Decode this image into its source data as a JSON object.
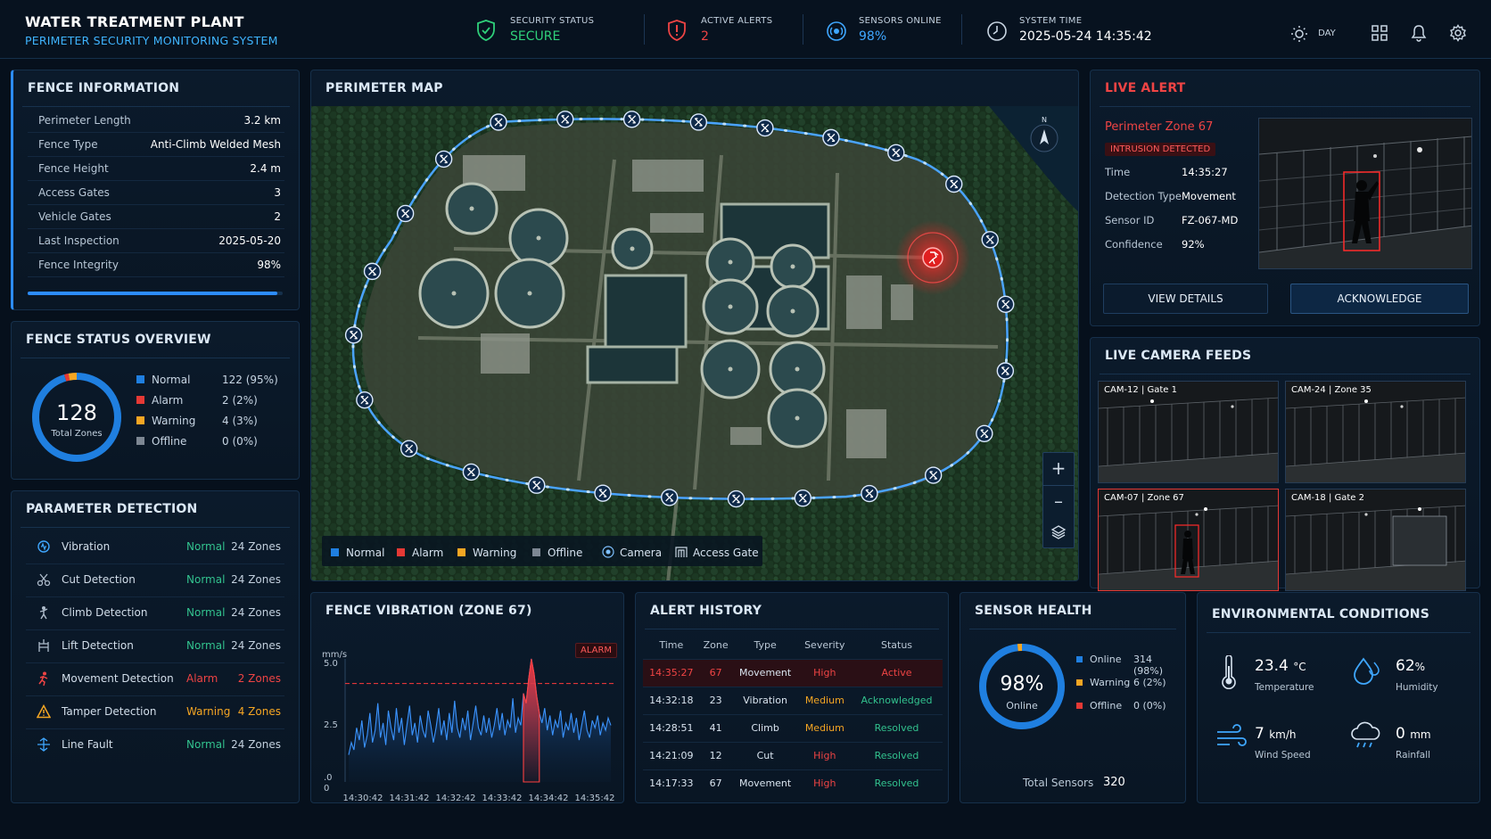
{
  "header": {
    "title": "WATER TREATMENT PLANT",
    "subtitle": "PERIMETER SECURITY MONITORING SYSTEM",
    "security_label": "SECURITY STATUS",
    "security_value": "SECURE",
    "alerts_label": "ACTIVE ALERTS",
    "alerts_value": "2",
    "sensors_label": "SENSORS ONLINE",
    "sensors_value": "98%",
    "time_label": "SYSTEM TIME",
    "time_value": "2025-05-24 14:35:42",
    "mode_label": "DAY"
  },
  "fence_info": {
    "title": "FENCE INFORMATION",
    "rows": [
      {
        "k": "Perimeter Length",
        "v": "3.2 km"
      },
      {
        "k": "Fence Type",
        "v": "Anti-Climb Welded Mesh"
      },
      {
        "k": "Fence Height",
        "v": "2.4 m"
      },
      {
        "k": "Access Gates",
        "v": "3"
      },
      {
        "k": "Vehicle Gates",
        "v": "2"
      },
      {
        "k": "Last Inspection",
        "v": "2025-05-20"
      },
      {
        "k": "Fence Integrity",
        "v": "98%"
      }
    ],
    "integrity_fraction": 0.98
  },
  "fence_status": {
    "title": "FENCE STATUS OVERVIEW",
    "total": "128",
    "total_label": "Total Zones",
    "items": [
      {
        "label": "Normal",
        "value": "122 (95%)",
        "color": "#1f7fe0",
        "count": 122
      },
      {
        "label": "Alarm",
        "value": "2 (2%)",
        "color": "#e53935",
        "count": 2
      },
      {
        "label": "Warning",
        "value": "4 (3%)",
        "color": "#f5a623",
        "count": 4
      },
      {
        "label": "Offline",
        "value": "0 (0%)",
        "color": "#7d8793",
        "count": 0
      }
    ]
  },
  "detection": {
    "title": "PARAMETER DETECTION",
    "rows": [
      {
        "name": "Vibration",
        "status": "Normal",
        "zones": "24 Zones",
        "icon": "vibration-icon"
      },
      {
        "name": "Cut Detection",
        "status": "Normal",
        "zones": "24 Zones",
        "icon": "scissors-icon"
      },
      {
        "name": "Climb Detection",
        "status": "Normal",
        "zones": "24 Zones",
        "icon": "climb-icon"
      },
      {
        "name": "Lift Detection",
        "status": "Normal",
        "zones": "24 Zones",
        "icon": "lift-icon"
      },
      {
        "name": "Movement Detection",
        "status": "Alarm",
        "zones": "2 Zones",
        "icon": "running-person-icon"
      },
      {
        "name": "Tamper Detection",
        "status": "Warning",
        "zones": "4 Zones",
        "icon": "warning-triangle-icon"
      },
      {
        "name": "Line Fault",
        "status": "Normal",
        "zones": "24 Zones",
        "icon": "line-fault-icon"
      }
    ],
    "colors": {
      "Normal": "#32c28e",
      "Alarm": "#ef4444",
      "Warning": "#f5a623"
    }
  },
  "map": {
    "title": "PERIMETER MAP",
    "compass": "N",
    "legend": [
      "Normal",
      "Alarm",
      "Warning",
      "Offline",
      "Camera",
      "Access Gate"
    ]
  },
  "live_alert": {
    "title": "LIVE ALERT",
    "zone": "Perimeter Zone 67",
    "badge": "INTRUSION DETECTED",
    "rows": [
      {
        "k": "Time",
        "v": "14:35:27"
      },
      {
        "k": "Detection Type",
        "v": "Movement"
      },
      {
        "k": "Sensor ID",
        "v": "FZ-067-MD"
      },
      {
        "k": "Confidence",
        "v": "92%"
      }
    ],
    "btn_details": "VIEW DETAILS",
    "btn_ack": "ACKNOWLEDGE"
  },
  "cameras": {
    "title": "LIVE CAMERA FEEDS",
    "feeds": [
      {
        "label": "CAM-12 | Gate 1"
      },
      {
        "label": "CAM-24 | Zone 35"
      },
      {
        "label": "CAM-07 | Zone 67"
      },
      {
        "label": "CAM-18 | Gate 2"
      }
    ]
  },
  "vibration": {
    "title": "FENCE VIBRATION (ZONE 67)",
    "badge": "ALARM",
    "chart_data": {
      "type": "line",
      "ylabel": "mm/s",
      "ylim": [
        0,
        5.0
      ],
      "y_ticks": [
        "5.0",
        "2.5",
        ".0",
        "0"
      ],
      "x_ticks": [
        "14:30:42",
        "14:31:42",
        "14:32:42",
        "14:33:42",
        "14:34:42",
        "14:35:42"
      ],
      "threshold": 4.0,
      "values": [
        1.1,
        1.6,
        1.3,
        2.2,
        1.7,
        2.5,
        1.4,
        1.9,
        2.8,
        1.6,
        2.1,
        3.2,
        1.8,
        2.4,
        1.5,
        2.9,
        2.2,
        1.7,
        3.0,
        2.0,
        2.6,
        1.5,
        2.3,
        3.1,
        1.9,
        2.4,
        1.6,
        2.7,
        2.1,
        1.8,
        2.9,
        2.3,
        1.6,
        2.2,
        3.0,
        1.9,
        2.5,
        1.7,
        2.8,
        2.0,
        3.3,
        2.2,
        1.8,
        2.6,
        2.1,
        2.9,
        1.7,
        2.4,
        3.1,
        2.2,
        1.9,
        2.7,
        2.0,
        2.6,
        1.8,
        2.3,
        3.0,
        2.1,
        2.8,
        1.9,
        2.5,
        2.2,
        3.4,
        2.0,
        2.6,
        2.3,
        3.6,
        3.2,
        4.2,
        5.0,
        4.4,
        3.5,
        2.8,
        2.4,
        3.0,
        2.1,
        2.7,
        1.9,
        2.5,
        2.2,
        2.9,
        1.8,
        2.4,
        2.1,
        2.8,
        2.0,
        2.6,
        1.7,
        2.3,
        2.9,
        2.1,
        1.8,
        2.5,
        2.2,
        2.7,
        1.9,
        2.4,
        2.1,
        2.6,
        2.3
      ]
    }
  },
  "alert_history": {
    "title": "ALERT HISTORY",
    "headers": [
      "Time",
      "Zone",
      "Type",
      "Severity",
      "Status"
    ],
    "rows": [
      {
        "time": "14:35:27",
        "zone": "67",
        "type": "Movement",
        "severity": "High",
        "status": "Active"
      },
      {
        "time": "14:32:18",
        "zone": "23",
        "type": "Vibration",
        "severity": "Medium",
        "status": "Acknowledged"
      },
      {
        "time": "14:28:51",
        "zone": "41",
        "type": "Climb",
        "severity": "Medium",
        "status": "Resolved"
      },
      {
        "time": "14:21:09",
        "zone": "12",
        "type": "Cut",
        "severity": "High",
        "status": "Resolved"
      },
      {
        "time": "14:17:33",
        "zone": "67",
        "type": "Movement",
        "severity": "High",
        "status": "Resolved"
      }
    ]
  },
  "sensor_health": {
    "title": "SENSOR HEALTH",
    "value": "98%",
    "label": "Online",
    "items": [
      {
        "label": "Online",
        "value": "314 (98%)",
        "color": "#1f7fe0",
        "count": 314
      },
      {
        "label": "Warning",
        "value": "6 (2%)",
        "color": "#f5a623",
        "count": 6
      },
      {
        "label": "Offline",
        "value": "0 (0%)",
        "color": "#e53935",
        "count": 0
      }
    ],
    "total_label": "Total Sensors",
    "total_value": "320"
  },
  "environment": {
    "title": "ENVIRONMENTAL CONDITIONS",
    "temp": "23.4",
    "temp_unit": "°C",
    "temp_label": "Temperature",
    "humidity": "62",
    "humidity_unit": "%",
    "humidity_label": "Humidity",
    "wind": "7",
    "wind_unit": "km/h",
    "wind_label": "Wind Speed",
    "rain": "0",
    "rain_unit": "mm",
    "rain_label": "Rainfall"
  }
}
